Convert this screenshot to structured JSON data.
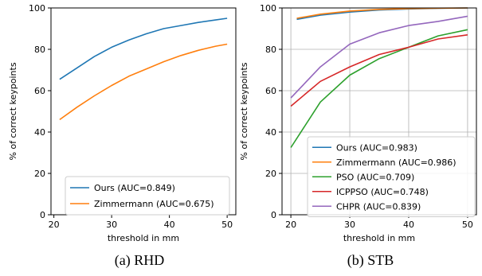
{
  "chart_data": [
    {
      "type": "line",
      "caption": "(a) RHD",
      "xlabel": "threshold in mm",
      "ylabel": "% of correct keypoints",
      "xlim": [
        19.5,
        51.5
      ],
      "ylim": [
        0,
        100
      ],
      "xticks": [
        20,
        30,
        40,
        50
      ],
      "yticks": [
        0,
        20,
        40,
        60,
        80,
        100
      ],
      "grid": false,
      "legend_position": "lower-right",
      "series": [
        {
          "name": "Ours (AUC=0.849)",
          "color": "#1f77b4",
          "x": [
            21,
            24,
            27,
            30,
            33,
            36,
            39,
            42,
            45,
            48,
            50
          ],
          "y": [
            65.5,
            71.0,
            76.5,
            81.0,
            84.5,
            87.5,
            90.0,
            91.5,
            93.0,
            94.2,
            95.0
          ]
        },
        {
          "name": "Zimmermann (AUC=0.675)",
          "color": "#ff7f0e",
          "x": [
            21,
            24,
            27,
            30,
            33,
            36,
            39,
            42,
            45,
            48,
            50
          ],
          "y": [
            46.0,
            52.0,
            57.5,
            62.5,
            67.0,
            70.5,
            74.0,
            77.0,
            79.5,
            81.5,
            82.5
          ]
        }
      ]
    },
    {
      "type": "line",
      "caption": "(b) STB",
      "xlabel": "threshold in mm",
      "ylabel": "% of correct keypoints",
      "xlim": [
        18.5,
        51.5
      ],
      "ylim": [
        0,
        100
      ],
      "xticks": [
        20,
        30,
        40,
        50
      ],
      "yticks": [
        0,
        20,
        40,
        60,
        80,
        100
      ],
      "grid": true,
      "legend_position": "lower-right",
      "series": [
        {
          "name": "Ours (AUC=0.983)",
          "color": "#1f77b4",
          "x": [
            21,
            25,
            30,
            35,
            40,
            45,
            50
          ],
          "y": [
            94.5,
            96.5,
            98.0,
            99.0,
            99.5,
            99.8,
            100.0
          ]
        },
        {
          "name": "Zimmermann (AUC=0.986)",
          "color": "#ff7f0e",
          "x": [
            21,
            25,
            30,
            35,
            40,
            45,
            50
          ],
          "y": [
            95.0,
            97.0,
            98.5,
            99.3,
            99.7,
            99.9,
            100.0
          ]
        },
        {
          "name": "PSO (AUC=0.709)",
          "color": "#2ca02c",
          "x": [
            20,
            25,
            30,
            35,
            40,
            45,
            50
          ],
          "y": [
            32.5,
            54.5,
            67.5,
            75.5,
            81.0,
            86.5,
            89.5
          ]
        },
        {
          "name": "ICPPSO (AUC=0.748)",
          "color": "#d62728",
          "x": [
            20,
            25,
            30,
            35,
            40,
            45,
            50
          ],
          "y": [
            52.5,
            64.5,
            71.5,
            77.5,
            81.0,
            85.0,
            87.0
          ]
        },
        {
          "name": "CHPR (AUC=0.839)",
          "color": "#9467bd",
          "x": [
            20,
            25,
            30,
            35,
            40,
            45,
            50
          ],
          "y": [
            56.5,
            71.5,
            82.5,
            88.0,
            91.5,
            93.5,
            96.0
          ]
        }
      ]
    }
  ]
}
